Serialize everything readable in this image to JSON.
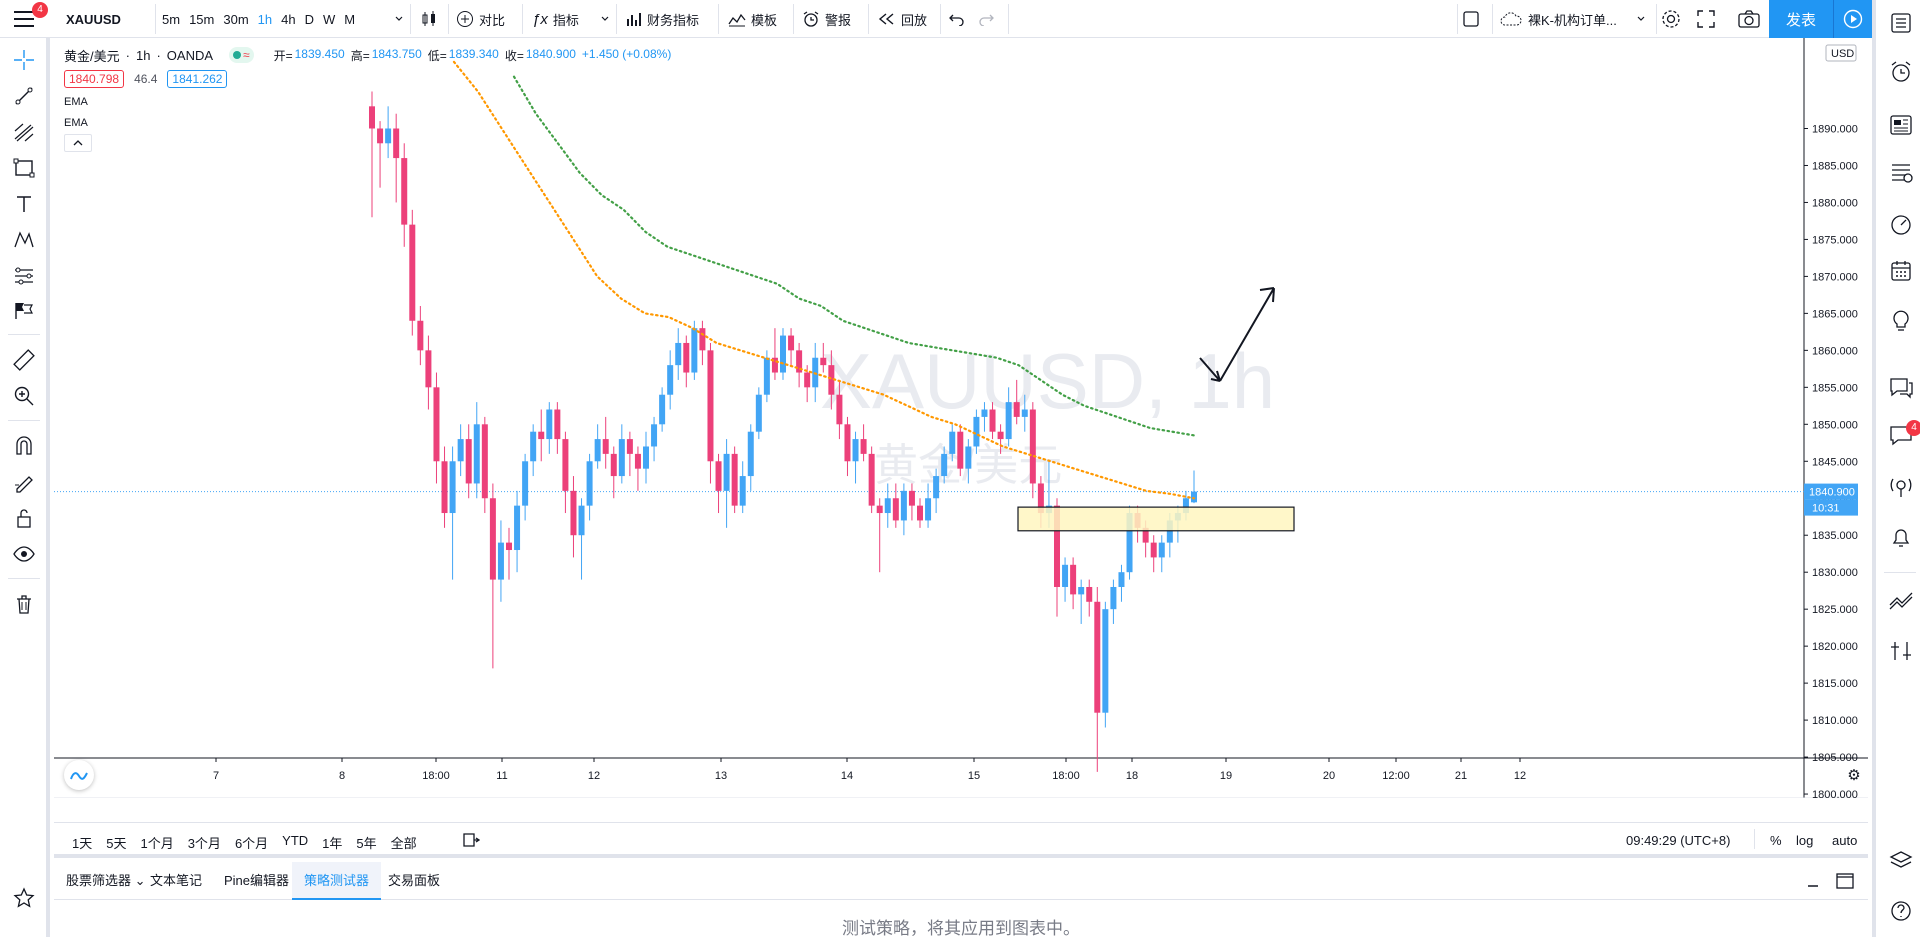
{
  "toolbar": {
    "menu_badge": "4",
    "symbol": "XAUUSD",
    "intervals": [
      "5m",
      "15m",
      "30m",
      "1h",
      "4h",
      "D",
      "W",
      "M"
    ],
    "active_interval": "1h",
    "compare": "对比",
    "indicators": "指标",
    "financials": "财务指标",
    "templates": "模板",
    "alert": "警报",
    "replay": "回放",
    "layout_name": "裸K-机构订单...",
    "publish": "发表"
  },
  "legend": {
    "name": "黄金/美元",
    "interval": "1h",
    "source": "OANDA",
    "open_label": "开=",
    "open": "1839.450",
    "high_label": "高=",
    "high": "1843.750",
    "low_label": "低=",
    "low": "1839.340",
    "close_label": "收=",
    "close": "1840.900",
    "change": "+1.450 (+0.08%)",
    "bid": "1840.798",
    "spread": "46.4",
    "ask": "1841.262",
    "ema1": "EMA",
    "ema2": "EMA"
  },
  "watermark": {
    "symbol": "XAUUSD, 1h",
    "name": "黄金/美元"
  },
  "price_axis": {
    "currency": "USD",
    "labels": [
      "1890.000",
      "1885.000",
      "1880.000",
      "1875.000",
      "1870.000",
      "1865.000",
      "1860.000",
      "1855.000",
      "1850.000",
      "1845.000",
      "1840.000",
      "1835.000",
      "1830.000",
      "1825.000",
      "1820.000",
      "1815.000",
      "1810.000",
      "1805.000",
      "1800.000"
    ],
    "current_price": "1840.900",
    "countdown": "10:31"
  },
  "time_axis": {
    "labels": [
      "7",
      "8",
      "18:00",
      "11",
      "12",
      "13",
      "14",
      "15",
      "18:00",
      "18",
      "19",
      "20",
      "12:00",
      "21",
      "12"
    ]
  },
  "ranges": [
    "1天",
    "5天",
    "1个月",
    "3个月",
    "6个月",
    "YTD",
    "1年",
    "5年",
    "全部"
  ],
  "clock": "09:49:29 (UTC+8)",
  "scale_opts": [
    "%",
    "log",
    "auto"
  ],
  "panel_tabs": [
    "股票筛选器",
    "文本笔记",
    "Pine编辑器",
    "策略测试器",
    "交易面板"
  ],
  "active_panel": "策略测试器",
  "panel_message": "测试策略，将其应用到图表中。",
  "right_badge": "4",
  "colors": {
    "up": "#42a5f5",
    "down": "#ec407a",
    "ema_fast": "#ff9800",
    "ema_slow": "#43a047",
    "accent": "#2196f3"
  },
  "chart_data": {
    "type": "candlestick",
    "symbol": "XAUUSD",
    "ylim": [
      1800,
      1890
    ],
    "candles": [
      [
        1893.0,
        1895.0,
        1878.0,
        1890.0
      ],
      [
        1890.0,
        1891.0,
        1882.0,
        1888.0
      ],
      [
        1888.0,
        1893.0,
        1886.0,
        1890.0
      ],
      [
        1890.0,
        1892.0,
        1880.0,
        1886.0
      ],
      [
        1886.0,
        1888.0,
        1874.0,
        1877.0
      ],
      [
        1877.0,
        1879.0,
        1862.0,
        1864.0
      ],
      [
        1864.0,
        1866.0,
        1858.0,
        1860.0
      ],
      [
        1860.0,
        1862.0,
        1852.0,
        1855.0
      ],
      [
        1855.0,
        1857.0,
        1842.0,
        1845.0
      ],
      [
        1845.0,
        1847.0,
        1836.0,
        1838.0
      ],
      [
        1838.0,
        1847.0,
        1829.0,
        1845.0
      ],
      [
        1845.0,
        1850.0,
        1843.0,
        1848.0
      ],
      [
        1848.0,
        1850.0,
        1840.0,
        1842.0
      ],
      [
        1842.0,
        1853.0,
        1840.0,
        1850.0
      ],
      [
        1850.0,
        1851.0,
        1838.0,
        1840.0
      ],
      [
        1840.0,
        1842.0,
        1817.0,
        1829.0
      ],
      [
        1829.0,
        1837.0,
        1826.0,
        1834.0
      ],
      [
        1834.0,
        1836.0,
        1829.0,
        1833.0
      ],
      [
        1833.0,
        1841.0,
        1830.0,
        1839.0
      ],
      [
        1839.0,
        1846.0,
        1837.0,
        1845.0
      ],
      [
        1845.0,
        1850.0,
        1843.0,
        1849.0
      ],
      [
        1849.0,
        1852.0,
        1845.0,
        1848.0
      ],
      [
        1848.0,
        1853.0,
        1846.0,
        1852.0
      ],
      [
        1852.0,
        1853.0,
        1846.0,
        1848.0
      ],
      [
        1848.0,
        1849.0,
        1838.0,
        1841.0
      ],
      [
        1841.0,
        1843.0,
        1832.0,
        1835.0
      ],
      [
        1835.0,
        1840.0,
        1829.0,
        1839.0
      ],
      [
        1839.0,
        1846.0,
        1837.0,
        1845.0
      ],
      [
        1845.0,
        1850.0,
        1844.0,
        1848.0
      ],
      [
        1848.0,
        1851.0,
        1844.0,
        1846.0
      ],
      [
        1846.0,
        1847.0,
        1840.0,
        1843.0
      ],
      [
        1843.0,
        1850.0,
        1842.0,
        1848.0
      ],
      [
        1848.0,
        1849.0,
        1843.0,
        1846.0
      ],
      [
        1846.0,
        1847.0,
        1841.0,
        1844.0
      ],
      [
        1844.0,
        1849.0,
        1842.0,
        1847.0
      ],
      [
        1847.0,
        1851.0,
        1845.0,
        1850.0
      ],
      [
        1850.0,
        1855.0,
        1849.0,
        1854.0
      ],
      [
        1854.0,
        1860.0,
        1852.0,
        1858.0
      ],
      [
        1858.0,
        1863.0,
        1856.0,
        1861.0
      ],
      [
        1861.0,
        1862.0,
        1855.0,
        1857.0
      ],
      [
        1857.0,
        1864.0,
        1856.0,
        1863.0
      ],
      [
        1863.0,
        1864.0,
        1858.0,
        1860.0
      ],
      [
        1860.0,
        1861.0,
        1842.0,
        1845.0
      ],
      [
        1845.0,
        1846.0,
        1838.0,
        1841.0
      ],
      [
        1841.0,
        1848.0,
        1836.0,
        1846.0
      ],
      [
        1846.0,
        1847.0,
        1838.0,
        1839.0
      ],
      [
        1839.0,
        1845.0,
        1838.0,
        1843.0
      ],
      [
        1843.0,
        1850.0,
        1841.0,
        1849.0
      ],
      [
        1849.0,
        1855.0,
        1848.0,
        1854.0
      ],
      [
        1854.0,
        1860.0,
        1853.0,
        1859.0
      ],
      [
        1859.0,
        1863.0,
        1856.0,
        1857.0
      ],
      [
        1857.0,
        1863.0,
        1856.0,
        1862.0
      ],
      [
        1862.0,
        1863.0,
        1858.0,
        1860.0
      ],
      [
        1860.0,
        1861.0,
        1855.0,
        1857.0
      ],
      [
        1857.0,
        1858.0,
        1853.0,
        1855.0
      ],
      [
        1855.0,
        1861.0,
        1853.0,
        1859.0
      ],
      [
        1859.0,
        1861.0,
        1857.0,
        1858.0
      ],
      [
        1858.0,
        1860.0,
        1852.0,
        1854.0
      ],
      [
        1854.0,
        1856.0,
        1848.0,
        1850.0
      ],
      [
        1850.0,
        1851.0,
        1843.0,
        1845.0
      ],
      [
        1845.0,
        1849.0,
        1842.0,
        1848.0
      ],
      [
        1848.0,
        1850.0,
        1845.0,
        1846.0
      ],
      [
        1846.0,
        1847.0,
        1838.0,
        1839.0
      ],
      [
        1839.0,
        1840.0,
        1830.0,
        1838.0
      ],
      [
        1838.0,
        1842.0,
        1836.0,
        1840.0
      ],
      [
        1840.0,
        1842.0,
        1836.0,
        1837.0
      ],
      [
        1837.0,
        1842.0,
        1835.0,
        1841.0
      ],
      [
        1841.0,
        1842.0,
        1837.0,
        1839.0
      ],
      [
        1839.0,
        1840.0,
        1836.0,
        1837.0
      ],
      [
        1837.0,
        1842.0,
        1836.0,
        1840.0
      ],
      [
        1840.0,
        1844.0,
        1838.0,
        1843.0
      ],
      [
        1843.0,
        1847.0,
        1842.0,
        1846.0
      ],
      [
        1846.0,
        1850.0,
        1845.0,
        1849.0
      ],
      [
        1849.0,
        1850.0,
        1843.0,
        1844.0
      ],
      [
        1844.0,
        1848.0,
        1842.0,
        1847.0
      ],
      [
        1847.0,
        1852.0,
        1846.0,
        1851.0
      ],
      [
        1851.0,
        1853.0,
        1849.0,
        1852.0
      ],
      [
        1852.0,
        1853.0,
        1848.0,
        1849.0
      ],
      [
        1849.0,
        1850.0,
        1846.0,
        1848.0
      ],
      [
        1848.0,
        1855.0,
        1847.0,
        1853.0
      ],
      [
        1853.0,
        1856.0,
        1850.0,
        1851.0
      ],
      [
        1851.0,
        1854.0,
        1849.0,
        1852.0
      ],
      [
        1852.0,
        1853.0,
        1840.0,
        1842.0
      ],
      [
        1842.0,
        1843.0,
        1836.0,
        1838.0
      ],
      [
        1838.0,
        1845.0,
        1836.0,
        1839.0
      ],
      [
        1839.0,
        1840.0,
        1824.0,
        1828.0
      ],
      [
        1828.0,
        1832.0,
        1826.0,
        1831.0
      ],
      [
        1831.0,
        1832.0,
        1825.0,
        1827.0
      ],
      [
        1827.0,
        1829.0,
        1823.0,
        1828.0
      ],
      [
        1828.0,
        1829.0,
        1824.0,
        1826.0
      ],
      [
        1826.0,
        1828.0,
        1803.0,
        1811.0
      ],
      [
        1811.0,
        1826.0,
        1809.0,
        1825.0
      ],
      [
        1825.0,
        1829.0,
        1823.0,
        1828.0
      ],
      [
        1828.0,
        1831.0,
        1826.0,
        1830.0
      ],
      [
        1830.0,
        1839.0,
        1829.0,
        1838.0
      ],
      [
        1838.0,
        1839.0,
        1834.0,
        1836.0
      ],
      [
        1836.0,
        1837.0,
        1832.0,
        1834.0
      ],
      [
        1834.0,
        1835.0,
        1830.0,
        1832.0
      ],
      [
        1832.0,
        1835.0,
        1830.0,
        1834.0
      ],
      [
        1834.0,
        1838.0,
        1832.0,
        1837.0
      ],
      [
        1837.0,
        1839.0,
        1834.0,
        1838.0
      ],
      [
        1838.0,
        1841.0,
        1837.0,
        1840.0
      ],
      [
        1839.45,
        1843.75,
        1839.34,
        1840.9
      ]
    ],
    "ema_fast": [
      1899.0,
      1895.0,
      1890.0,
      1885.0,
      1880.0,
      1875.0,
      1870.0,
      1867.0,
      1865.0,
      1864.5,
      1863.0,
      1861.0,
      1860.0,
      1859.0,
      1858.0,
      1857.0,
      1856.0,
      1855.0,
      1854.0,
      1852.5,
      1851.0,
      1850.0,
      1848.5,
      1847.0,
      1846.0,
      1845.0,
      1844.0,
      1843.0,
      1842.0,
      1841.0,
      1840.6,
      1840.0
    ],
    "ema_slow": [
      1897.0,
      1892.0,
      1888.0,
      1884.0,
      1881.0,
      1879.0,
      1876.0,
      1874.0,
      1873.0,
      1872.0,
      1871.0,
      1870.0,
      1869.0,
      1867.0,
      1866.0,
      1864.0,
      1863.0,
      1862.0,
      1861.0,
      1860.5,
      1860.0,
      1859.5,
      1859.0,
      1858.0,
      1856.0,
      1854.0,
      1852.5,
      1851.5,
      1850.5,
      1849.5,
      1849.0,
      1848.5
    ],
    "zone": {
      "high": 1838.8,
      "low": 1835.6
    },
    "annotation": "arrow"
  }
}
